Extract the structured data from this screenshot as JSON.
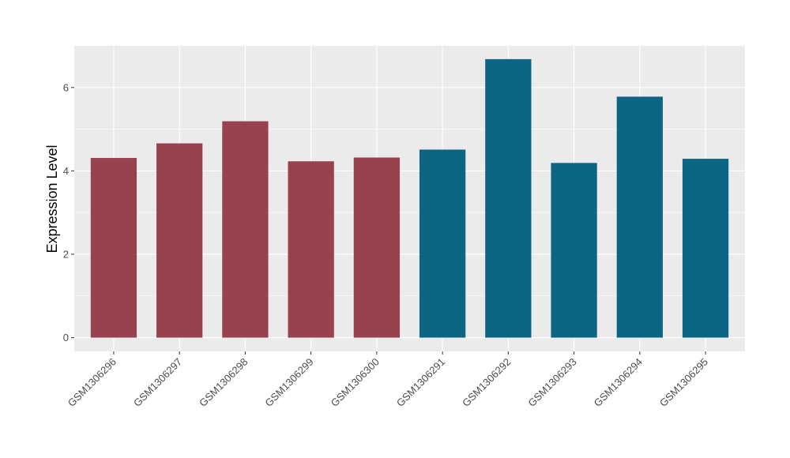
{
  "chart_data": {
    "type": "bar",
    "title": "",
    "xlabel": "",
    "ylabel": "Expression Level",
    "categories": [
      "GSM1306296",
      "GSM1306297",
      "GSM1306298",
      "GSM1306299",
      "GSM1306300",
      "GSM1306291",
      "GSM1306292",
      "GSM1306293",
      "GSM1306294",
      "GSM1306295"
    ],
    "values": [
      4.31,
      4.66,
      5.19,
      4.23,
      4.32,
      4.51,
      6.68,
      4.19,
      5.78,
      4.29
    ],
    "bar_colors": [
      "#99424f",
      "#99424f",
      "#99424f",
      "#99424f",
      "#99424f",
      "#0b6583",
      "#0b6583",
      "#0b6583",
      "#0b6583",
      "#0b6583"
    ],
    "yticks": [
      0,
      2,
      4,
      6
    ],
    "ylim": [
      -0.33,
      7.0
    ],
    "grid": true,
    "legend": "none",
    "panel_background": "#ebebeb",
    "grid_color": "#ffffff"
  }
}
